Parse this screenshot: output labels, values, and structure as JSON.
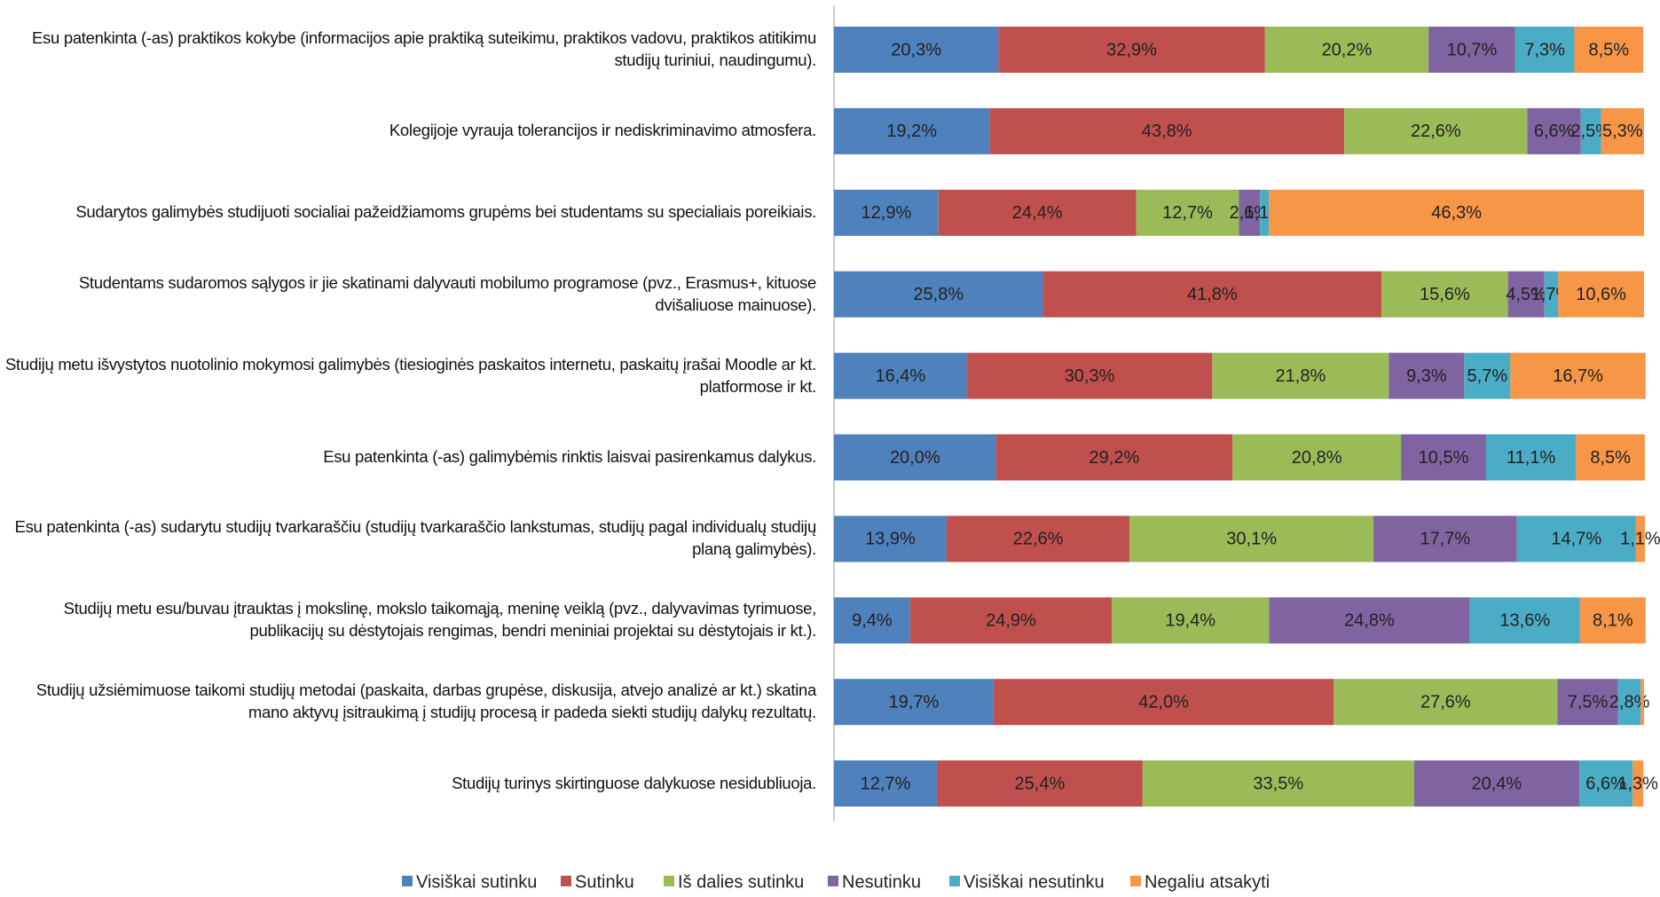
{
  "chart_data": {
    "type": "stacked_bar_horizontal",
    "categories": [
      "Esu patenkinta (-as) praktikos kokybe (informacijos apie praktiką suteikimu, praktikos vadovu, praktikos atitikimu studijų turiniui, naudingumu).",
      "Kolegijoje vyrauja tolerancijos ir nediskriminavimo atmosfera.",
      "Sudarytos galimybės studijuoti socialiai pažeidžiamoms grupėms bei studentams su specialiais poreikiais.",
      "Studentams sudaromos sąlygos ir jie skatinami dalyvauti mobilumo programose (pvz., Erasmus+, kituose dvišaliuose mainuose).",
      "Studijų metu išvystytos nuotolinio mokymosi galimybės (tiesioginės paskaitos internetu, paskaitų įrašai Moodle ar kt. platformose ir kt.",
      "Esu patenkinta (-as) galimybėmis rinktis laisvai pasirenkamus dalykus.",
      "Esu patenkinta (-as) sudarytu studijų tvarkaraščiu (studijų tvarkaraščio lankstumas, studijų pagal individualų studijų planą galimybės).",
      "Studijų metu esu/buvau įtrauktas į mokslinę, mokslo taikomąją, meninę veiklą (pvz., dalyvavimas tyrimuose, publikacijų su dėstytojais rengimas, bendri meniniai projektai su dėstytojais ir kt.).",
      "Studijų užsiėmimuose taikomi studijų metodai (paskaita, darbas grupėse, diskusija, atvejo analizė ar kt.) skatina mano aktyvų įsitraukimą į studijų procesą ir padeda siekti studijų dalykų rezultatų.",
      "Studijų turinys skirtinguose dalykuose nesidubliuoja."
    ],
    "series": [
      {
        "name": "Visiškai sutinku",
        "color": "#4f81bd",
        "values": [
          20.3,
          19.2,
          12.9,
          25.8,
          16.4,
          20.0,
          13.9,
          9.4,
          19.7,
          12.7
        ],
        "value_labels": [
          "20,3%",
          "19,2%",
          "12,9%",
          "25,8%",
          "16,4%",
          "20,0%",
          "13,9%",
          "9,4%",
          "19,7%",
          "12,7%"
        ]
      },
      {
        "name": "Sutinku",
        "color": "#c0504d",
        "values": [
          32.9,
          43.8,
          24.4,
          41.8,
          30.3,
          29.2,
          22.6,
          24.9,
          42.0,
          25.4
        ],
        "value_labels": [
          "32,9%",
          "43,8%",
          "24,4%",
          "41,8%",
          "30,3%",
          "29,2%",
          "22,6%",
          "24,9%",
          "42,0%",
          "25,4%"
        ]
      },
      {
        "name": "Iš dalies sutinku",
        "color": "#9bbb59",
        "values": [
          20.2,
          22.6,
          12.7,
          15.6,
          21.8,
          20.8,
          30.1,
          19.4,
          27.6,
          33.5
        ],
        "value_labels": [
          "20,2%",
          "22,6%",
          "12,7%",
          "15,6%",
          "21,8%",
          "20,8%",
          "30,1%",
          "19,4%",
          "27,6%",
          "33,5%"
        ]
      },
      {
        "name": "Nesutinku",
        "color": "#8064a2",
        "values": [
          10.7,
          6.6,
          2.6,
          4.5,
          9.3,
          10.5,
          17.7,
          24.8,
          7.5,
          20.4
        ],
        "value_labels": [
          "10,7%",
          "6,6%",
          "2,6%",
          "4,5%",
          "9,3%",
          "10,5%",
          "17,7%",
          "24,8%",
          "7,5%",
          "20,4%"
        ]
      },
      {
        "name": "Visiškai nesutinku",
        "color": "#4bacc6",
        "values": [
          7.3,
          2.5,
          1.1,
          1.7,
          5.7,
          11.1,
          14.7,
          13.6,
          2.8,
          6.6
        ],
        "value_labels": [
          "7,3%",
          "2,5%",
          "1,1%",
          "1,7%",
          "5,7%",
          "11,1%",
          "14,7%",
          "13,6%",
          "2,8%",
          "6,6%"
        ]
      },
      {
        "name": "Negaliu atsakyti",
        "color": "#f79646",
        "values": [
          8.5,
          5.3,
          46.3,
          10.6,
          16.7,
          8.5,
          1.1,
          8.1,
          0.4,
          1.3
        ],
        "value_labels": [
          "8,5%",
          "5,3%",
          "46,3%",
          "10,6%",
          "16,7%",
          "8,5%",
          "1,1%",
          "8,1%",
          null,
          "1,3%"
        ]
      }
    ],
    "legend": "bottom"
  }
}
